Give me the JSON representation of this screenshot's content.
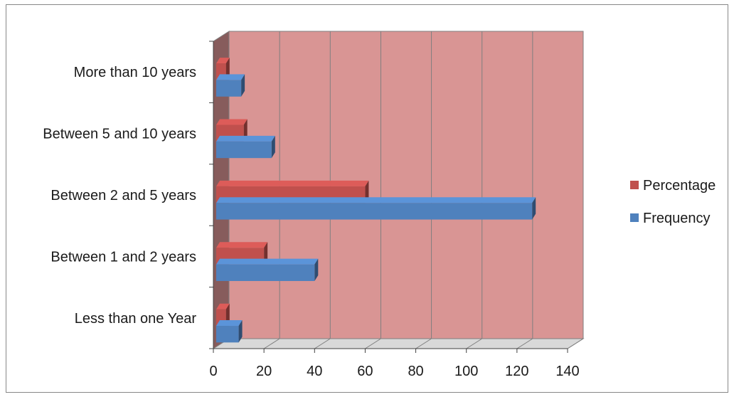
{
  "chart_data": {
    "type": "bar",
    "orientation": "horizontal",
    "style": "3d",
    "categories": [
      "Less than one Year",
      "Between 1 and 2 years",
      "Between 2 and 5 years",
      "Between 5 and 10 years",
      "More than 10 years"
    ],
    "series": [
      {
        "name": "Percentage",
        "values": [
          5,
          20,
          60,
          12,
          5
        ],
        "color": "#c0504d"
      },
      {
        "name": "Frequency",
        "values": [
          10,
          40,
          126,
          23,
          11
        ],
        "color": "#4f81bd"
      }
    ],
    "xlim": [
      0,
      140
    ],
    "x_ticks": [
      "0",
      "20",
      "40",
      "60",
      "80",
      "100",
      "120",
      "140"
    ],
    "grid": true,
    "legend_position": "right",
    "plot_background": "#d99594"
  }
}
